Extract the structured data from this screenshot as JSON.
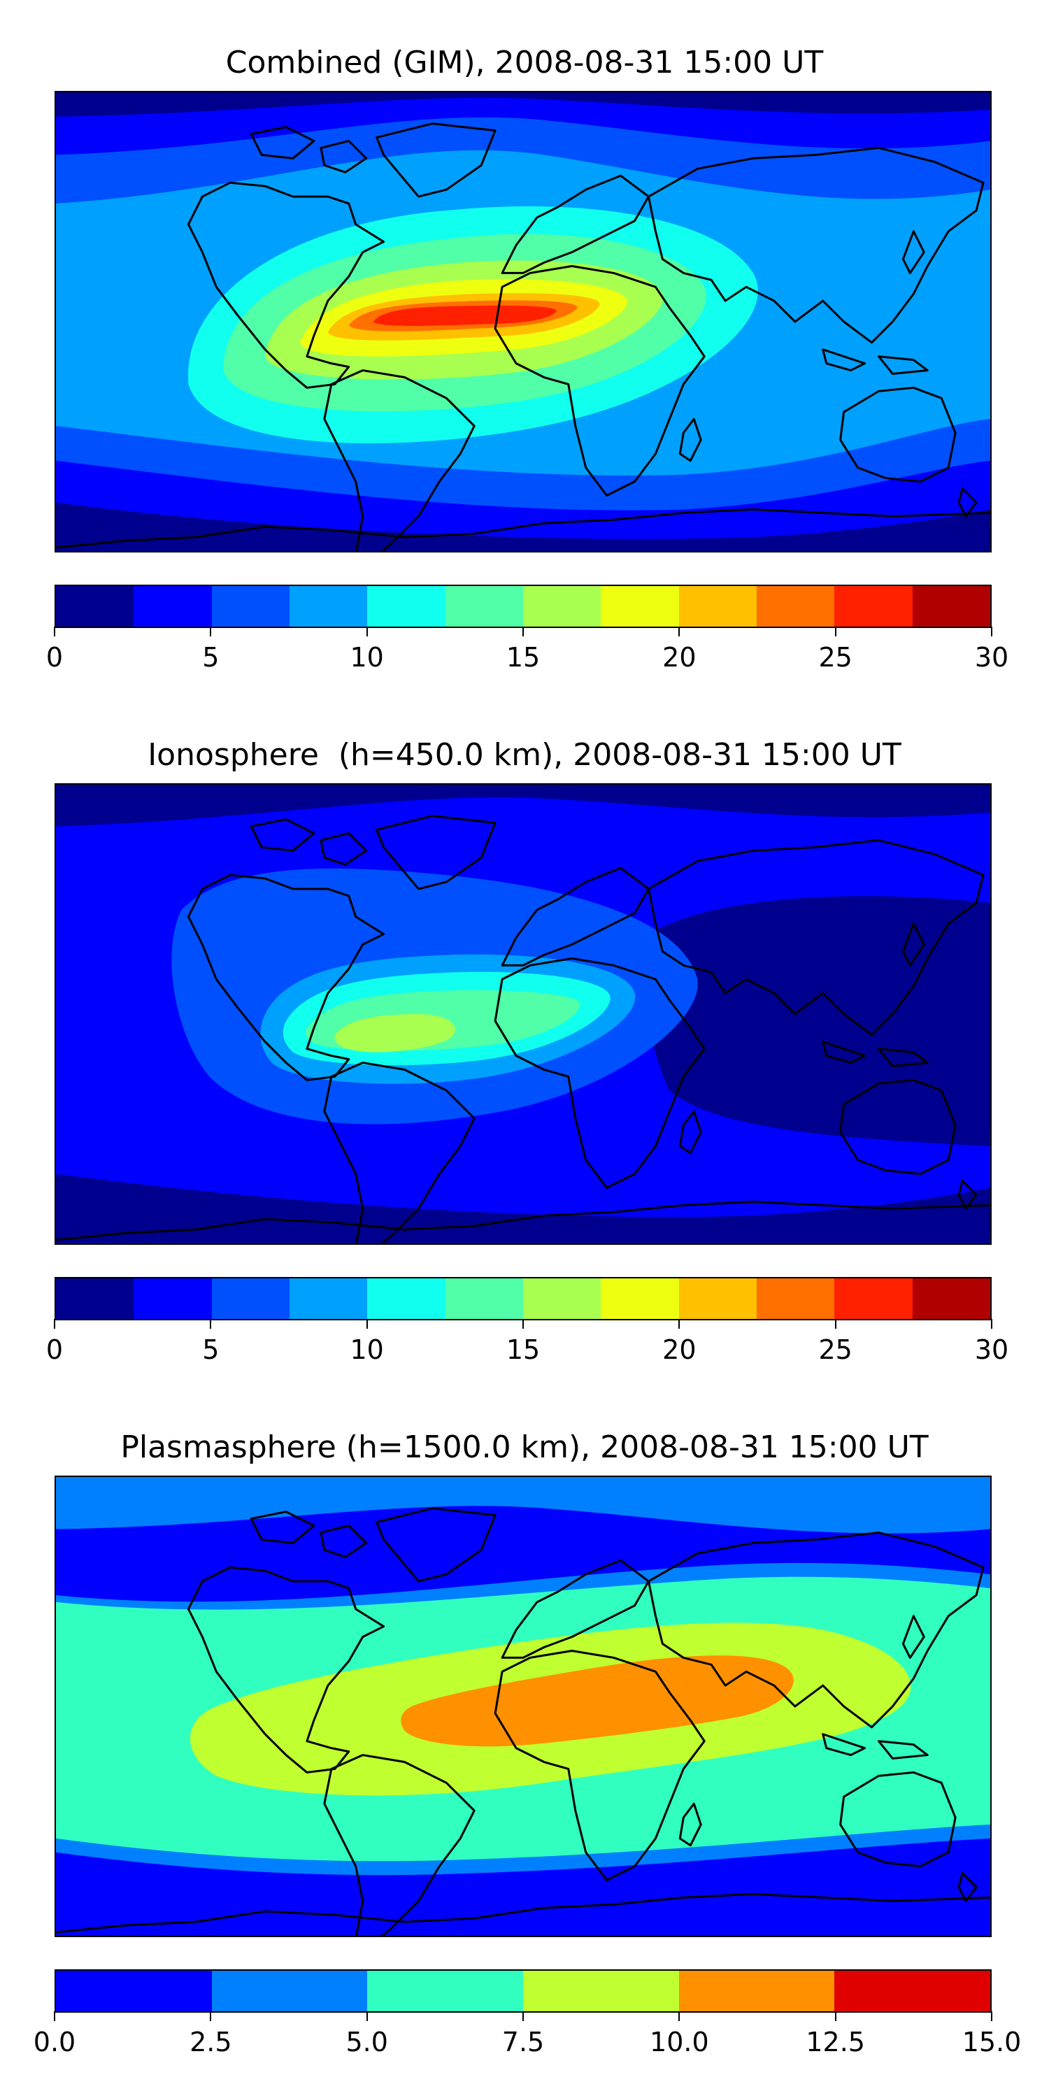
{
  "panels": [
    {
      "title": "Combined (GIM), 2008-08-31 15:00 UT",
      "levels": [
        0,
        2.5,
        5,
        7.5,
        10,
        12.5,
        15,
        17.5,
        20,
        22.5,
        25,
        27.5,
        30
      ],
      "colors": [
        "#00008f",
        "#0000ff",
        "#0050ff",
        "#00a0ff",
        "#10ffee",
        "#50ffa8",
        "#a8ff50",
        "#eeff10",
        "#ffc000",
        "#ff7000",
        "#ff2000",
        "#b00000"
      ],
      "tick_labels": [
        "0",
        "5",
        "10",
        "15",
        "20",
        "25",
        "30"
      ],
      "ticks": [
        0,
        5,
        10,
        15,
        20,
        25,
        30
      ]
    },
    {
      "title": "Ionosphere  (h=450.0 km), 2008-08-31 15:00 UT",
      "levels": [
        0,
        2.5,
        5,
        7.5,
        10,
        12.5,
        15,
        17.5,
        20,
        22.5,
        25,
        27.5,
        30
      ],
      "colors": [
        "#00008f",
        "#0000ff",
        "#0050ff",
        "#00a0ff",
        "#10ffee",
        "#50ffa8",
        "#a8ff50",
        "#eeff10",
        "#ffc000",
        "#ff7000",
        "#ff2000",
        "#b00000"
      ],
      "tick_labels": [
        "0",
        "5",
        "10",
        "15",
        "20",
        "25",
        "30"
      ],
      "ticks": [
        0,
        5,
        10,
        15,
        20,
        25,
        30
      ]
    },
    {
      "title": "Plasmasphere (h=1500.0 km), 2008-08-31 15:00 UT",
      "levels": [
        0,
        2.5,
        5,
        7.5,
        10,
        12.5,
        15
      ],
      "colors": [
        "#0000ff",
        "#0080ff",
        "#30ffc0",
        "#c0ff30",
        "#ff9000",
        "#e00000"
      ],
      "tick_labels": [
        "0.0",
        "2.5",
        "5.0",
        "7.5",
        "10.0",
        "12.5",
        "15.0"
      ],
      "ticks": [
        0,
        2.5,
        5,
        7.5,
        10,
        12.5,
        15
      ]
    }
  ]
}
